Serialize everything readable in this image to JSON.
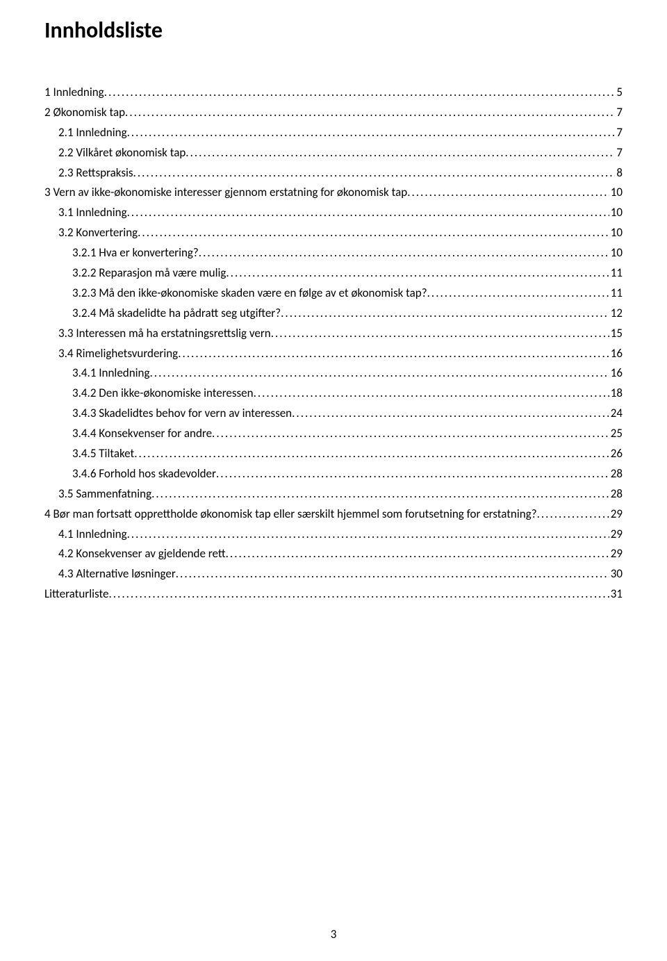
{
  "title": "Innholdsliste",
  "page_number": "3",
  "toc": [
    {
      "label": "1 Innledning",
      "page": "5",
      "indent": 0
    },
    {
      "label": "2 Økonomisk tap",
      "page": "7",
      "indent": 0
    },
    {
      "label": "2.1 Innledning",
      "page": "7",
      "indent": 1
    },
    {
      "label": "2.2 Vilkåret økonomisk tap",
      "page": "7",
      "indent": 1
    },
    {
      "label": "2.3 Rettspraksis",
      "page": "8",
      "indent": 1
    },
    {
      "label": "3 Vern av ikke-økonomiske interesser gjennom erstatning for økonomisk tap",
      "page": "10",
      "indent": 0
    },
    {
      "label": "3.1 Innledning",
      "page": "10",
      "indent": 1
    },
    {
      "label": "3.2 Konvertering",
      "page": "10",
      "indent": 1
    },
    {
      "label": "3.2.1 Hva er konvertering?",
      "page": "10",
      "indent": 2
    },
    {
      "label": "3.2.2 Reparasjon må være mulig",
      "page": "11",
      "indent": 2
    },
    {
      "label": "3.2.3 Må den ikke-økonomiske skaden være en følge av et økonomisk tap?",
      "page": "11",
      "indent": 2
    },
    {
      "label": "3.2.4 Må skadelidte ha pådratt seg utgifter?",
      "page": "12",
      "indent": 2
    },
    {
      "label": "3.3 Interessen må ha erstatningsrettslig vern",
      "page": "15",
      "indent": 1
    },
    {
      "label": "3.4 Rimelighetsvurdering",
      "page": "16",
      "indent": 1
    },
    {
      "label": "3.4.1 Innledning",
      "page": "16",
      "indent": 2
    },
    {
      "label": "3.4.2 Den ikke-økonomiske interessen",
      "page": "18",
      "indent": 2
    },
    {
      "label": "3.4.3 Skadelidtes behov for vern av interessen",
      "page": "24",
      "indent": 2
    },
    {
      "label": "3.4.4 Konsekvenser for andre",
      "page": "25",
      "indent": 2
    },
    {
      "label": "3.4.5 Tiltaket",
      "page": "26",
      "indent": 2
    },
    {
      "label": "3.4.6 Forhold hos skadevolder",
      "page": "28",
      "indent": 2
    },
    {
      "label": "3.5 Sammenfatning",
      "page": "28",
      "indent": 1
    },
    {
      "label": "4 Bør man fortsatt opprettholde økonomisk tap eller særskilt hjemmel som forutsetning for erstatning?",
      "page": "29",
      "indent": 0
    },
    {
      "label": "4.1 Innledning",
      "page": "29",
      "indent": 1
    },
    {
      "label": "4.2 Konsekvenser av gjeldende rett",
      "page": "29",
      "indent": 1
    },
    {
      "label": "4.3 Alternative løsninger",
      "page": "30",
      "indent": 1
    },
    {
      "label": "Litteraturliste",
      "page": "31",
      "indent": 0
    }
  ]
}
